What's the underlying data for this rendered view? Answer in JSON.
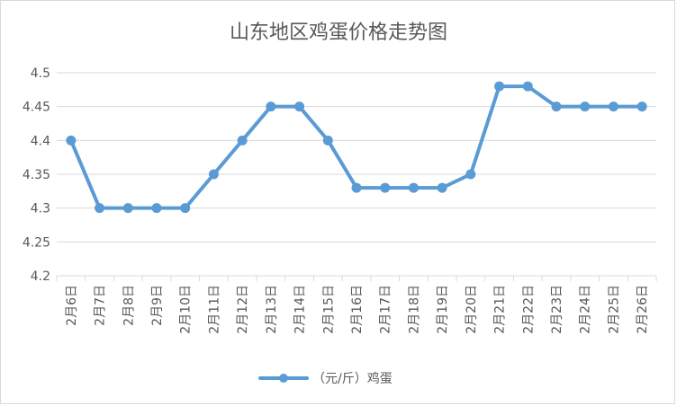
{
  "chart_data": {
    "type": "line",
    "title": "山东地区鸡蛋价格走势图",
    "categories": [
      "2月6日",
      "2月7日",
      "2月8日",
      "2月9日",
      "2月10日",
      "2月11日",
      "2月12日",
      "2月13日",
      "2月14日",
      "2月15日",
      "2月16日",
      "2月17日",
      "2月18日",
      "2月19日",
      "2月20日",
      "2月21日",
      "2月22日",
      "2月23日",
      "2月24日",
      "2月25日",
      "2月26日"
    ],
    "series": [
      {
        "name": "（元/斤）鸡蛋",
        "color": "#5b9bd5",
        "values": [
          4.4,
          4.3,
          4.3,
          4.3,
          4.3,
          4.35,
          4.4,
          4.45,
          4.45,
          4.4,
          4.33,
          4.33,
          4.33,
          4.33,
          4.35,
          4.48,
          4.48,
          4.45,
          4.45,
          4.45,
          4.45
        ]
      }
    ],
    "ylim": [
      4.2,
      4.5
    ],
    "yticks": [
      "4.2",
      "4.25",
      "4.3",
      "4.35",
      "4.4",
      "4.45",
      "4.5"
    ],
    "grid": true,
    "legend_position": "bottom"
  }
}
